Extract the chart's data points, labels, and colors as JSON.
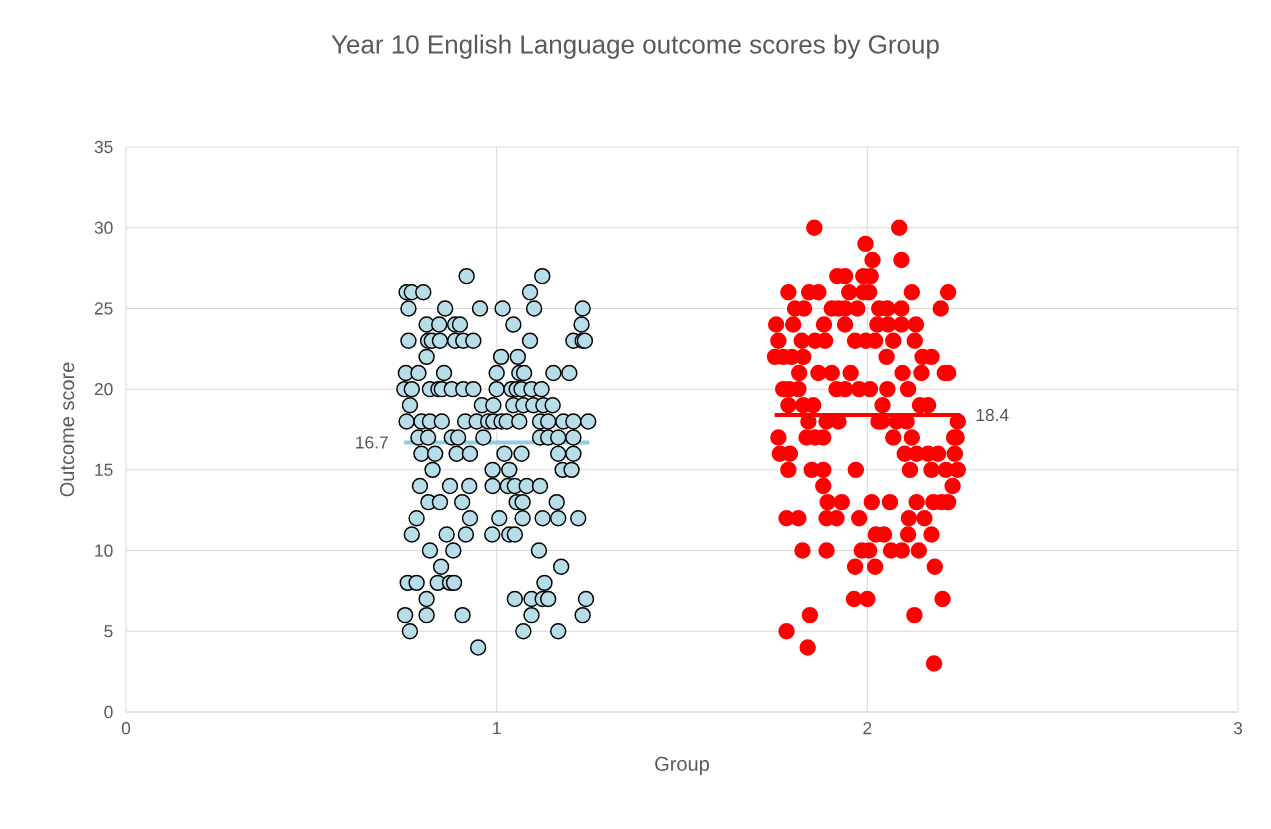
{
  "chart_data": {
    "type": "scatter",
    "title": "Year 10 English Language outcome scores by Group",
    "xlabel": "Group",
    "ylabel": "Outcome score",
    "xlim": [
      0,
      3
    ],
    "xticks": [
      0,
      1,
      2,
      3
    ],
    "ylim": [
      0,
      35
    ],
    "yticks": [
      0,
      5,
      10,
      15,
      20,
      25,
      30,
      35
    ],
    "grid": true,
    "series": [
      {
        "marker": "circle",
        "color": "#b7dde8",
        "x": [
          0.919,
          1.123,
          0.757,
          0.771,
          0.802,
          1.09,
          0.762,
          0.861,
          0.955,
          1.016,
          1.101,
          1.232,
          0.811,
          0.845,
          0.888,
          0.901,
          1.045,
          1.229,
          0.762,
          0.815,
          0.825,
          0.847,
          0.888,
          0.91,
          0.937,
          1.09,
          1.207,
          1.232,
          1.238,
          0.811,
          1.012,
          1.057,
          0.755,
          0.789,
          0.858,
          1.0,
          1.061,
          1.074,
          1.153,
          1.196,
          0.751,
          0.771,
          0.82,
          0.843,
          0.852,
          0.879,
          0.91,
          0.937,
          1.0,
          1.04,
          1.054,
          1.067,
          1.094,
          1.121,
          0.766,
          0.96,
          0.991,
          1.045,
          1.072,
          1.099,
          1.126,
          1.151,
          0.757,
          0.797,
          0.82,
          0.852,
          0.915,
          0.946,
          0.977,
          0.991,
          1.013,
          1.027,
          1.061,
          1.117,
          1.139,
          1.18,
          1.207,
          1.247,
          0.789,
          0.815,
          0.879,
          0.896,
          0.964,
          1.117,
          1.139,
          1.166,
          1.207,
          0.797,
          0.834,
          0.892,
          0.928,
          1.021,
          1.067,
          1.166,
          1.207,
          0.827,
          0.989,
          1.034,
          1.178,
          1.202,
          0.793,
          0.874,
          0.926,
          0.989,
          1.03,
          1.049,
          1.081,
          1.117,
          0.816,
          0.847,
          0.907,
          1.054,
          1.07,
          1.162,
          0.784,
          0.928,
          1.007,
          1.07,
          1.124,
          1.166,
          1.22,
          0.771,
          0.865,
          0.917,
          0.988,
          1.034,
          1.049,
          0.82,
          0.883,
          1.114,
          0.85,
          1.174,
          0.76,
          0.784,
          0.841,
          0.874,
          0.885,
          1.129,
          0.811,
          1.049,
          1.094,
          1.124,
          1.139,
          1.241,
          0.753,
          0.811,
          0.908,
          1.094,
          1.232,
          0.766,
          1.072,
          1.166,
          0.95
        ],
        "values": [
          27,
          27,
          26,
          26,
          26,
          26,
          25,
          25,
          25,
          25,
          25,
          25,
          24,
          24,
          24,
          24,
          24,
          24,
          23,
          23,
          23,
          23,
          23,
          23,
          23,
          23,
          23,
          23,
          23,
          22,
          22,
          22,
          21,
          21,
          21,
          21,
          21,
          21,
          21,
          21,
          20,
          20,
          20,
          20,
          20,
          20,
          20,
          20,
          20,
          20,
          20,
          20,
          20,
          20,
          19,
          19,
          19,
          19,
          19,
          19,
          19,
          19,
          18,
          18,
          18,
          18,
          18,
          18,
          18,
          18,
          18,
          18,
          18,
          18,
          18,
          18,
          18,
          18,
          17,
          17,
          17,
          17,
          17,
          17,
          17,
          17,
          17,
          16,
          16,
          16,
          16,
          16,
          16,
          16,
          16,
          15,
          15,
          15,
          15,
          15,
          14,
          14,
          14,
          14,
          14,
          14,
          14,
          14,
          13,
          13,
          13,
          13,
          13,
          13,
          12,
          12,
          12,
          12,
          12,
          12,
          12,
          11,
          11,
          11,
          11,
          11,
          11,
          10,
          10,
          10,
          9,
          9,
          8,
          8,
          8,
          8,
          8,
          8,
          7,
          7,
          7,
          7,
          7,
          7,
          6,
          6,
          6,
          6,
          6,
          5,
          5,
          5,
          4
        ]
      },
      {
        "marker": "circle",
        "color": "#ff0000",
        "x": [
          1.857,
          2.086,
          1.995,
          2.014,
          2.092,
          1.919,
          1.94,
          1.989,
          2.009,
          1.787,
          1.843,
          1.868,
          1.951,
          1.989,
          2.005,
          2.12,
          2.218,
          1.805,
          1.829,
          1.904,
          1.922,
          1.94,
          1.973,
          2.032,
          2.054,
          2.092,
          2.198,
          1.754,
          1.8,
          1.883,
          1.94,
          2.027,
          2.056,
          2.092,
          2.131,
          1.76,
          1.823,
          1.859,
          1.886,
          1.967,
          1.996,
          2.021,
          2.07,
          2.128,
          1.751,
          1.773,
          1.796,
          1.827,
          2.052,
          2.149,
          2.173,
          1.816,
          1.868,
          1.904,
          1.955,
          2.095,
          2.146,
          2.209,
          2.218,
          1.773,
          1.789,
          1.814,
          1.917,
          1.94,
          1.978,
          2.007,
          2.054,
          2.11,
          1.787,
          1.827,
          1.854,
          2.041,
          2.142,
          2.164,
          1.841,
          1.89,
          1.922,
          2.03,
          2.039,
          2.079,
          2.106,
          2.244,
          1.76,
          1.836,
          1.859,
          1.881,
          2.07,
          2.12,
          2.234,
          2.241,
          1.764,
          1.791,
          2.101,
          2.133,
          2.164,
          2.191,
          2.236,
          1.787,
          1.85,
          1.881,
          1.969,
          2.115,
          2.173,
          2.212,
          2.244,
          1.881,
          2.23,
          1.893,
          1.931,
          2.012,
          2.061,
          2.133,
          2.178,
          2.2,
          2.218,
          1.782,
          1.814,
          1.89,
          1.917,
          1.978,
          2.112,
          2.154,
          2.023,
          2.045,
          2.11,
          2.173,
          1.825,
          1.89,
          1.985,
          2.005,
          2.064,
          2.093,
          2.139,
          1.967,
          2.021,
          2.182,
          1.964,
          2.0,
          2.203,
          1.845,
          2.127,
          1.782,
          1.839,
          2.18
        ],
        "values": [
          30,
          30,
          29,
          28,
          28,
          27,
          27,
          27,
          27,
          26,
          26,
          26,
          26,
          26,
          26,
          26,
          26,
          25,
          25,
          25,
          25,
          25,
          25,
          25,
          25,
          25,
          25,
          24,
          24,
          24,
          24,
          24,
          24,
          24,
          24,
          23,
          23,
          23,
          23,
          23,
          23,
          23,
          23,
          23,
          22,
          22,
          22,
          22,
          22,
          22,
          22,
          21,
          21,
          21,
          21,
          21,
          21,
          21,
          21,
          20,
          20,
          20,
          20,
          20,
          20,
          20,
          20,
          20,
          19,
          19,
          19,
          19,
          19,
          19,
          18,
          18,
          18,
          18,
          18,
          18,
          18,
          18,
          17,
          17,
          17,
          17,
          17,
          17,
          17,
          17,
          16,
          16,
          16,
          16,
          16,
          16,
          16,
          15,
          15,
          15,
          15,
          15,
          15,
          15,
          15,
          14,
          14,
          13,
          13,
          13,
          13,
          13,
          13,
          13,
          13,
          12,
          12,
          12,
          12,
          12,
          12,
          12,
          11,
          11,
          11,
          11,
          10,
          10,
          10,
          10,
          10,
          10,
          10,
          9,
          9,
          9,
          7,
          7,
          7,
          6,
          6,
          5,
          4,
          3
        ]
      },
      {
        "type": "line",
        "marker": "none",
        "color": "#92cddc",
        "x": [
          0.75,
          1.25
        ],
        "values": [
          16.7,
          16.7
        ],
        "value_labels": [
          "16.7",
          null
        ]
      },
      {
        "type": "line",
        "marker": "none",
        "color": "#ff0000",
        "x": [
          1.75,
          2.25
        ],
        "values": [
          18.4,
          18.4
        ],
        "value_labels": [
          null,
          "18.4"
        ]
      }
    ]
  }
}
